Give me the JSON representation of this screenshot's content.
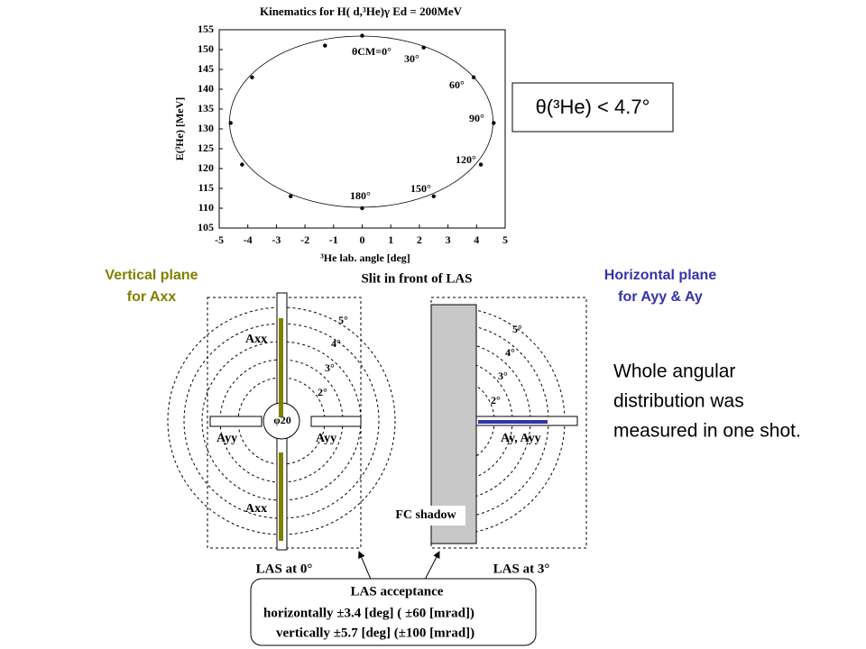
{
  "chart_data": {
    "type": "scatter",
    "title": "Kinematics for H( d,³He)γ Ed = 200MeV",
    "x_label": "³He lab. angle [deg]",
    "y_label": "E(³He) [MeV]",
    "x": [
      0,
      2.15,
      3.9,
      4.6,
      4.15,
      2.5,
      0,
      -2.5,
      -4.2,
      -4.6,
      -3.85,
      -1.3
    ],
    "series": [
      {
        "name": "kinematics",
        "color": "#000000",
        "values": [
          153.5,
          150.5,
          143,
          131.5,
          121,
          113,
          110,
          113,
          121,
          131.5,
          143,
          151
        ]
      }
    ],
    "xlim": [
      -5,
      5
    ],
    "xticks": [
      -5,
      -4,
      -3,
      -2,
      -1,
      0,
      1,
      2,
      3,
      4,
      5
    ],
    "ylim": [
      105,
      155
    ],
    "yticks": [
      105,
      110,
      115,
      120,
      125,
      130,
      135,
      140,
      145,
      150,
      155
    ],
    "annotations": [
      "θCM=0°",
      "30°",
      "60°",
      "90°",
      "120°",
      "150°",
      "180°"
    ]
  },
  "slide": {
    "angle_limit": "θ(³He) < 4.7°",
    "vertical_plane": [
      "Vertical plane",
      "for Axx"
    ],
    "horizontal_plane": [
      "Horizontal plane",
      "for Ayy & Ay"
    ],
    "slit_title": "Slit in front of LAS",
    "note": [
      "Whole angular",
      "distribution was",
      "measured in one shot."
    ],
    "left_angles": [
      "5°",
      "4°",
      "3°",
      "2°"
    ],
    "right_angles": [
      "5°",
      "4°",
      "3°",
      "2°"
    ],
    "left_labels": [
      "Axx",
      "Axx",
      "Ayy",
      "Ayy",
      "φ20"
    ],
    "right_labels": [
      "Ay, Ayy",
      "FC shadow"
    ],
    "las_0": "LAS at 0°",
    "las_3": "LAS at 3°",
    "acceptance": [
      "LAS acceptance",
      "horizontally ±3.4 [deg] ( ±60 [mrad])",
      "vertically ±5.7 [deg] (±100 [mrad])"
    ]
  }
}
